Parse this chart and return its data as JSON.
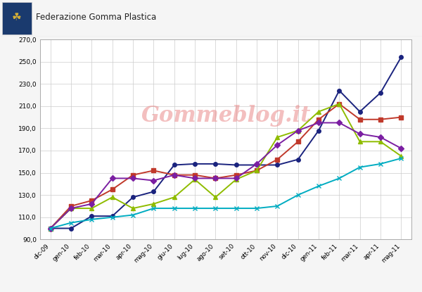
{
  "x_labels": [
    "dic-09",
    "gen-10",
    "feb-10",
    "mar-10",
    "apr-10",
    "mag-10",
    "giu-10",
    "lug-10",
    "ago-10",
    "set-10",
    "ott-10",
    "nov-10",
    "dic-10",
    "gen-11",
    "feb-11",
    "mar-11",
    "apr-11",
    "mag-11"
  ],
  "SBR_1500": [
    100,
    100,
    111,
    111,
    128,
    133,
    157,
    158,
    158,
    157,
    157,
    157,
    162,
    188,
    224,
    205,
    222,
    254
  ],
  "SMR_CV": [
    100,
    120,
    125,
    135,
    148,
    152,
    148,
    148,
    145,
    148,
    152,
    162,
    178,
    198,
    212,
    198,
    198,
    200
  ],
  "SMR_20": [
    100,
    118,
    118,
    128,
    118,
    122,
    128,
    144,
    128,
    144,
    152,
    182,
    188,
    205,
    212,
    178,
    178,
    165
  ],
  "LATTICE": [
    100,
    118,
    122,
    145,
    145,
    143,
    148,
    145,
    145,
    145,
    158,
    175,
    188,
    195,
    195,
    185,
    182,
    172
  ],
  "NERO_DI_CARBONIO": [
    100,
    105,
    108,
    110,
    112,
    118,
    118,
    118,
    118,
    118,
    118,
    120,
    130,
    138,
    145,
    155,
    158,
    163
  ],
  "colors": {
    "SBR_1500": "#1a237e",
    "SMR_CV": "#c0392b",
    "SMR_20": "#8fbc00",
    "LATTICE": "#7b1fa2",
    "NERO_DI_CARBONIO": "#00acc1"
  },
  "markers": {
    "SBR_1500": "o",
    "SMR_CV": "s",
    "SMR_20": "^",
    "LATTICE": "D",
    "NERO_DI_CARBONIO": "x"
  },
  "ylim": [
    90,
    270
  ],
  "yticks": [
    90,
    110,
    130,
    150,
    170,
    190,
    210,
    230,
    250,
    270
  ],
  "header_text": "Federazione Gomma Plastica",
  "watermark": "Gommeblog.it",
  "bg_color": "#f5f5f5",
  "plot_bg": "#ffffff",
  "grid_color": "#cccccc"
}
